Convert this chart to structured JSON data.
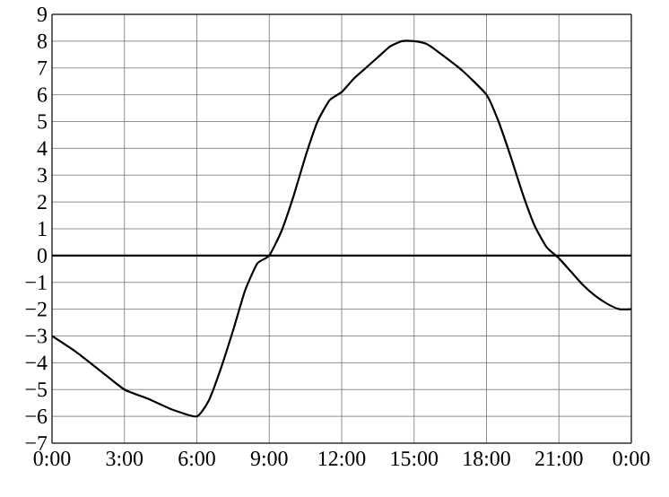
{
  "chart_data": {
    "type": "line",
    "xlim": [
      0,
      24
    ],
    "ylim": [
      -7,
      9
    ],
    "xticks": [
      {
        "value": 0,
        "label": "0:00"
      },
      {
        "value": 3,
        "label": "3:00"
      },
      {
        "value": 6,
        "label": "6:00"
      },
      {
        "value": 9,
        "label": "9:00"
      },
      {
        "value": 12,
        "label": "12:00"
      },
      {
        "value": 15,
        "label": "15:00"
      },
      {
        "value": 18,
        "label": "18:00"
      },
      {
        "value": 21,
        "label": "21:00"
      },
      {
        "value": 24,
        "label": "0:00"
      }
    ],
    "yticks": [
      {
        "value": -7,
        "label": "−7"
      },
      {
        "value": -6,
        "label": "−6"
      },
      {
        "value": -5,
        "label": "−5"
      },
      {
        "value": -4,
        "label": "−4"
      },
      {
        "value": -3,
        "label": "−3"
      },
      {
        "value": -2,
        "label": "−2"
      },
      {
        "value": -1,
        "label": "−1"
      },
      0,
      1,
      2,
      3,
      4,
      5,
      6,
      7,
      8,
      9
    ],
    "grid": true,
    "marker": "none",
    "line_style": "solid",
    "ref_lines": [
      {
        "axis": "y",
        "value": 0,
        "color": "#000000"
      }
    ],
    "series": [
      {
        "color": "#000000",
        "x": [
          0,
          1,
          2,
          3,
          4,
          5,
          6,
          6.5,
          7,
          7.5,
          8,
          8.5,
          9,
          9.5,
          10,
          10.5,
          11,
          11.5,
          12,
          12.5,
          13,
          13.5,
          14,
          14.5,
          15,
          15.5,
          16,
          17,
          18,
          18.5,
          19,
          19.5,
          20,
          20.5,
          21,
          21.5,
          22,
          22.5,
          23,
          23.5,
          24
        ],
        "values": [
          -3,
          -3.6,
          -4.3,
          -5,
          -5.35,
          -5.75,
          -6,
          -5.4,
          -4.2,
          -2.8,
          -1.3,
          -0.3,
          0,
          0.9,
          2.2,
          3.7,
          5,
          5.8,
          6.1,
          6.6,
          7,
          7.4,
          7.8,
          8,
          8,
          7.9,
          7.6,
          6.9,
          6,
          5,
          3.7,
          2.3,
          1.1,
          0.3,
          -0.1,
          -0.6,
          -1.1,
          -1.5,
          -1.8,
          -2,
          -2
        ]
      }
    ]
  }
}
